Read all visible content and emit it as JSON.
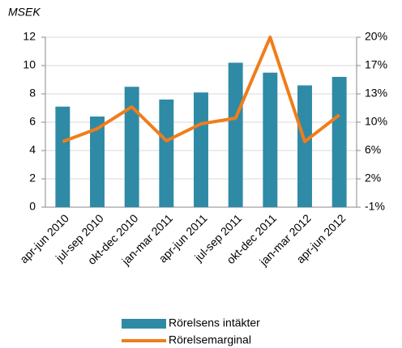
{
  "chart_data": {
    "type": "bar_line",
    "y_label": "MSEK",
    "categories": [
      "apr-jun 2010",
      "jul-sep 2010",
      "okt-dec 2010",
      "jan-mar 2011",
      "apr-jun 2011",
      "jul-sep 2011",
      "okt-dec 2011",
      "jan-mar 2012",
      "apr-jun 2012"
    ],
    "series": [
      {
        "name": "Rörelsens intäkter",
        "color": "#2f8aa6",
        "kind": "bar",
        "values": [
          7.1,
          6.4,
          8.5,
          7.6,
          8.1,
          10.2,
          9.5,
          8.6,
          9.2
        ]
      },
      {
        "name": "Rörelsemarginal",
        "color": "#f07d1a",
        "kind": "line",
        "axis": "y2",
        "values": [
          7.1,
          8.7,
          11.4,
          7.2,
          9.3,
          10.0,
          20.0,
          7.1,
          10.4
        ]
      }
    ],
    "ylim": [
      0,
      12
    ],
    "yticks": [
      0,
      2,
      4,
      6,
      8,
      10,
      12
    ],
    "y2lim": [
      -1,
      20
    ],
    "y2ticks": [
      {
        "value": -1,
        "label": "-1%"
      },
      {
        "value": 2.5,
        "label": "2%"
      },
      {
        "value": 6,
        "label": "6%"
      },
      {
        "value": 9.5,
        "label": "10%"
      },
      {
        "value": 13,
        "label": "13%"
      },
      {
        "value": 16.5,
        "label": "17%"
      },
      {
        "value": 20,
        "label": "20%"
      }
    ],
    "grid": true
  }
}
